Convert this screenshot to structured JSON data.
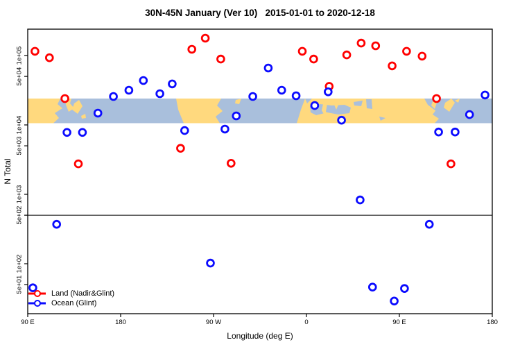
{
  "title": "30N-45N January (Ver 10)   2015-01-01 to 2020-12-18",
  "axes": {
    "x": {
      "label": "Longitude (deg E)",
      "range": [
        90,
        540
      ],
      "ticks": [
        {
          "value": 90,
          "label": "90 E"
        },
        {
          "value": 180,
          "label": "180"
        },
        {
          "value": 270,
          "label": "90 W"
        },
        {
          "value": 360,
          "label": "0"
        },
        {
          "value": 450,
          "label": "90 E"
        },
        {
          "value": 540,
          "label": "180"
        }
      ]
    },
    "y": {
      "label": "N Total",
      "scale": "log10",
      "ticks": [
        {
          "value": 100000,
          "label": "1e+05"
        },
        {
          "value": 50000,
          "label": "5e+04"
        },
        {
          "value": 10000,
          "label": "1e+04"
        },
        {
          "value": 5000,
          "label": "5e+03"
        },
        {
          "value": 1000,
          "label": "1e+03"
        },
        {
          "value": 500,
          "label": "5e+02"
        },
        {
          "value": 100,
          "label": "1e+02"
        },
        {
          "value": 50,
          "label": "5e+01"
        }
      ]
    }
  },
  "reference_line": {
    "value": 500
  },
  "map_band": {
    "top_value": 24000,
    "bottom_value": 10600
  },
  "legend": {
    "items": [
      {
        "label": "Land (Nadir&Glint)",
        "color": "#ff0000"
      },
      {
        "label": "Ocean (Glint)",
        "color": "#0b0bff"
      }
    ]
  },
  "colors": {
    "land_marker": "#ff0000",
    "ocean_marker": "#0b0bff",
    "map_land": "#ffd97e",
    "map_ocean": "#a9bfdc",
    "frame": "#000000"
  },
  "chart_data": {
    "type": "scatter",
    "title": "30N-45N January (Ver 10)   2015-01-01 to 2020-12-18",
    "xlabel": "Longitude (deg E)",
    "ylabel": "N Total",
    "x_note": "longitude in deg E, continuing past 360 (plot spans 90E eastward to 180)",
    "xlim": [
      90,
      540
    ],
    "ylim_log": [
      19,
      240000
    ],
    "legend_position": "bottom-left",
    "grid": false,
    "series": [
      {
        "name": "Land (Nadir&Glint)",
        "color": "#ff0000",
        "points": [
          [
            97,
            115000
          ],
          [
            111,
            93000
          ],
          [
            126,
            24000
          ],
          [
            139,
            2750
          ],
          [
            238,
            4600
          ],
          [
            249,
            123000
          ],
          [
            262,
            178000
          ],
          [
            277,
            89000
          ],
          [
            287,
            2800
          ],
          [
            356,
            115000
          ],
          [
            367,
            89000
          ],
          [
            382,
            36000
          ],
          [
            399,
            102000
          ],
          [
            413,
            151000
          ],
          [
            427,
            138000
          ],
          [
            443,
            71000
          ],
          [
            457,
            115000
          ],
          [
            472,
            98000
          ],
          [
            486,
            24000
          ],
          [
            500,
            2750
          ]
        ]
      },
      {
        "name": "Ocean (Glint)",
        "color": "#0b0bff",
        "points": [
          [
            95,
            45
          ],
          [
            118,
            370
          ],
          [
            128,
            7800
          ],
          [
            143,
            7800
          ],
          [
            158,
            14800
          ],
          [
            173,
            25700
          ],
          [
            188,
            31600
          ],
          [
            202,
            43700
          ],
          [
            218,
            28200
          ],
          [
            230,
            39000
          ],
          [
            242,
            8300
          ],
          [
            267,
            102
          ],
          [
            281,
            8700
          ],
          [
            292,
            13500
          ],
          [
            308,
            25700
          ],
          [
            323,
            66000
          ],
          [
            336,
            31600
          ],
          [
            350,
            26300
          ],
          [
            368,
            19000
          ],
          [
            381,
            30000
          ],
          [
            394,
            11700
          ],
          [
            412,
            830
          ],
          [
            424,
            46
          ],
          [
            445,
            29
          ],
          [
            455,
            44
          ],
          [
            479,
            370
          ],
          [
            488,
            7900
          ],
          [
            504,
            7900
          ],
          [
            518,
            14100
          ],
          [
            533,
            27000
          ]
        ]
      }
    ]
  }
}
